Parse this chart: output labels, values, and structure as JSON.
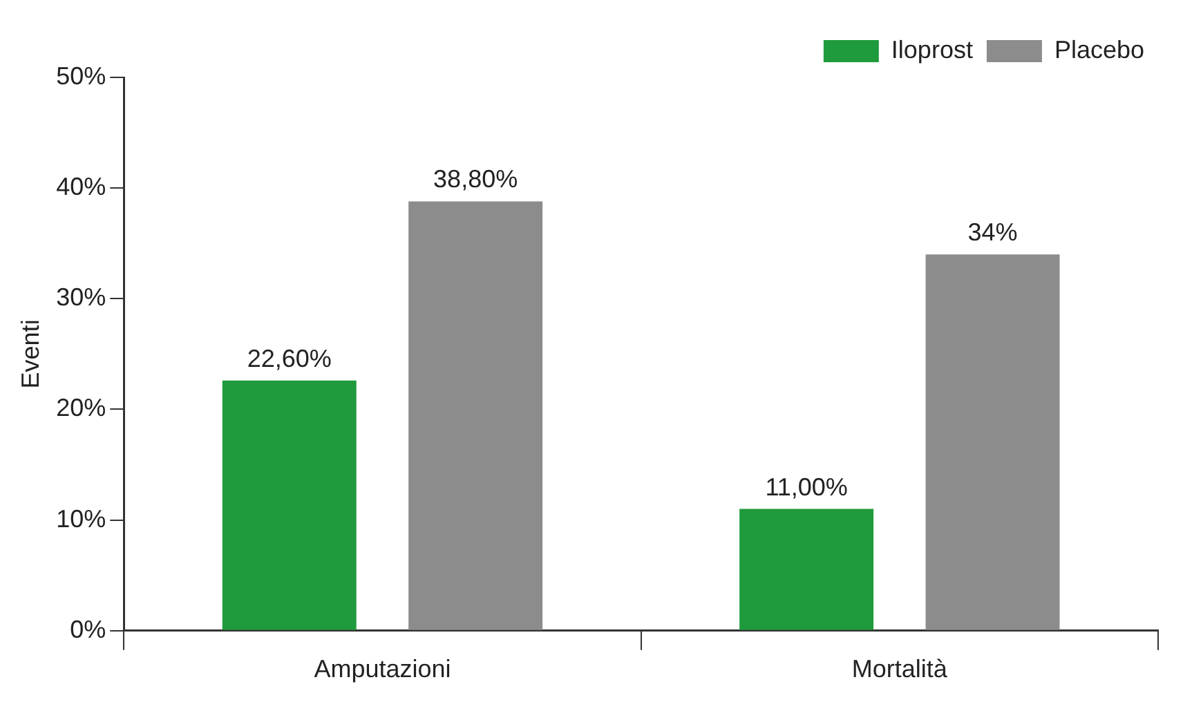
{
  "chart_data": {
    "type": "bar",
    "ylabel": "Eventi",
    "categories": [
      "Amputazioni",
      "Mortalità"
    ],
    "series": [
      {
        "name": "Iloprost",
        "color": "#1f9a3c",
        "values": [
          22.6,
          11
        ],
        "value_labels": [
          "22,60%",
          "11,00%"
        ]
      },
      {
        "name": "Placebo",
        "color": "#8c8c8c",
        "values": [
          38.8,
          34
        ],
        "value_labels": [
          "38,80%",
          "34%"
        ]
      }
    ],
    "ylim": [
      0,
      50
    ],
    "yticks": [
      {
        "value": 0,
        "label": "0%"
      },
      {
        "value": 10,
        "label": "10%"
      },
      {
        "value": 20,
        "label": "20%"
      },
      {
        "value": 30,
        "label": "30%"
      },
      {
        "value": 40,
        "label": "40%"
      },
      {
        "value": 50,
        "label": "50%"
      }
    ],
    "legend": "top right",
    "grid": false
  }
}
